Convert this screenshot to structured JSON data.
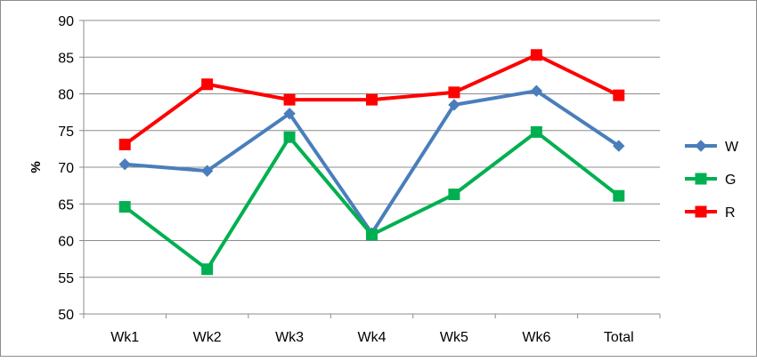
{
  "chart_data": {
    "type": "line",
    "title": "",
    "xlabel": "",
    "ylabel": "%",
    "ylim": [
      50,
      90
    ],
    "yticks": [
      50,
      55,
      60,
      65,
      70,
      75,
      80,
      85,
      90
    ],
    "grid": true,
    "legend_position": "right",
    "categories": [
      "Wk1",
      "Wk2",
      "Wk3",
      "Wk4",
      "Wk5",
      "Wk6",
      "Total"
    ],
    "series": [
      {
        "name": "W",
        "color": "#4a7ebb",
        "marker": "diamond",
        "values": [
          70.4,
          69.5,
          77.3,
          61.0,
          78.5,
          80.4,
          72.9
        ]
      },
      {
        "name": "G",
        "color": "#00b050",
        "marker": "square",
        "values": [
          64.6,
          56.1,
          74.1,
          60.8,
          66.3,
          74.8,
          66.1
        ]
      },
      {
        "name": "R",
        "color": "#ff0000",
        "marker": "square",
        "values": [
          73.1,
          81.3,
          79.2,
          79.2,
          80.2,
          85.3,
          79.8
        ]
      }
    ]
  }
}
